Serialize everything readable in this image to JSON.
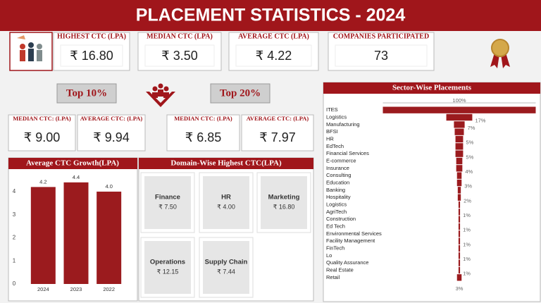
{
  "header": {
    "title": "PLACEMENT STATISTICS - 2024"
  },
  "kpis": [
    {
      "label": "HIGHEST CTC (LPA)",
      "value": "₹ 16.80"
    },
    {
      "label": "MEDIAN CTC (LPA)",
      "value": "₹ 3.50"
    },
    {
      "label": "AVERAGE CTC (LPA)",
      "value": "₹ 4.22"
    },
    {
      "label": "COMPANIES PARTICIPATED",
      "value": "73"
    }
  ],
  "top10": {
    "button": "Top 10%",
    "cards": [
      {
        "label": "MEDIAN CTC: (LPA)",
        "value": "₹ 9.00"
      },
      {
        "label": "AVERAGE CTC: (LPA)",
        "value": "₹ 9.94"
      }
    ]
  },
  "top20": {
    "button": "Top 20%",
    "cards": [
      {
        "label": "MEDIAN CTC: (LPA)",
        "value": "₹ 6.85"
      },
      {
        "label": "AVERAGE CTC: (LPA)",
        "value": "₹ 7.97"
      }
    ]
  },
  "domains": {
    "title": "Domain-Wise Highest CTC(LPA)",
    "cards": [
      {
        "name": "Finance",
        "value": "₹ 7.50"
      },
      {
        "name": "HR",
        "value": "₹ 4.00"
      },
      {
        "name": "Marketing",
        "value": "₹ 16.80"
      },
      {
        "name": "Operations",
        "value": "₹ 12.15"
      },
      {
        "name": "Supply Chain",
        "value": "₹ 7.44"
      }
    ]
  },
  "chart_data": [
    {
      "type": "bar",
      "title": "Average CTC Growth(LPA)",
      "categories": [
        "2024",
        "2023",
        "2022"
      ],
      "values": [
        4.2,
        4.4,
        4.0
      ],
      "value_labels": [
        "4.2",
        "4.4",
        "4.0"
      ],
      "color": "#9b1b1e",
      "ylim": [
        0,
        4.7
      ],
      "yticks": [
        0,
        1,
        2,
        3,
        4
      ]
    },
    {
      "type": "funnel",
      "title": "Sector-Wise Placements",
      "categories": [
        "ITES",
        "Logistics",
        "Manufacturing",
        "BFSI",
        "HR",
        "EdTech",
        "Financial Services",
        "E-commerce",
        "Insurance",
        "Consulting",
        "Education",
        "Banking",
        "Hospitality",
        "Logistics",
        "AgriTech",
        "Construction",
        "Ed Tech",
        "Environmental Services",
        "Facility Management",
        "FinTech",
        "Lo",
        "Quality Assurance",
        "Real Estate",
        "Retail"
      ],
      "values": [
        100,
        17,
        7,
        6,
        5,
        5,
        5,
        4,
        4,
        3,
        3,
        2,
        2,
        1,
        1,
        1,
        1,
        1,
        1,
        1,
        1,
        1,
        1,
        3
      ],
      "value_labels": [
        "100%",
        "17%",
        "7%",
        null,
        "5%",
        null,
        "5%",
        null,
        "4%",
        null,
        "3%",
        null,
        "2%",
        null,
        "1%",
        null,
        "1%",
        null,
        "1%",
        null,
        "1%",
        null,
        "1%",
        "3%"
      ],
      "color": "#9b1b1e"
    }
  ]
}
